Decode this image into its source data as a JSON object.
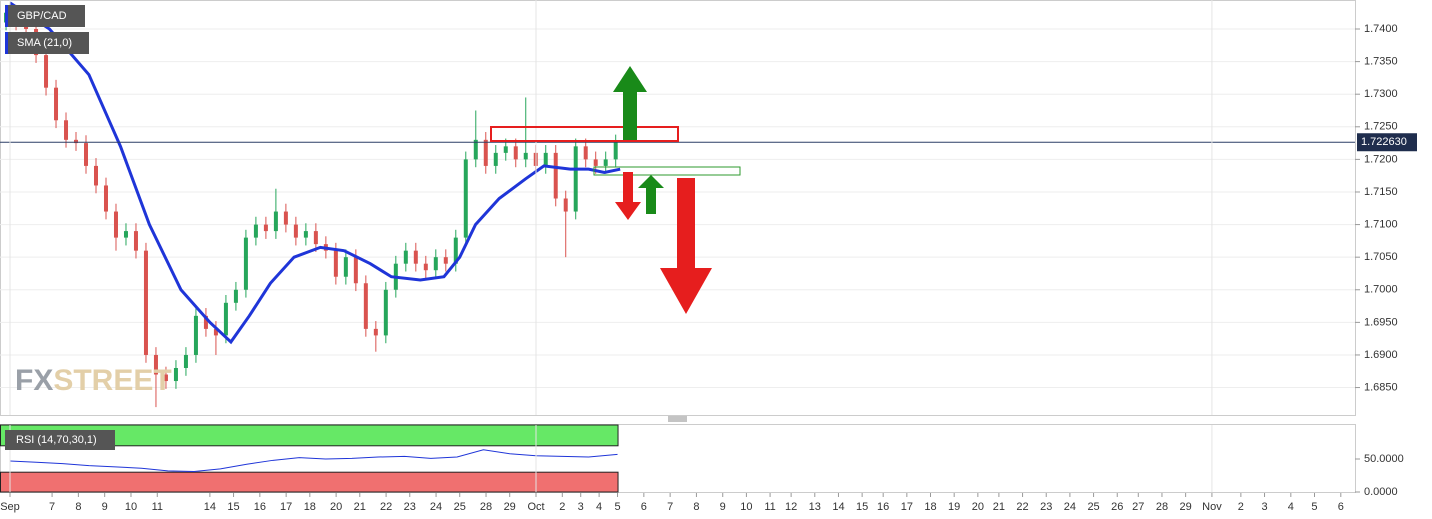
{
  "chart_data": [
    {
      "type": "candlestick",
      "title": "GBP/CAD",
      "xlim": [
        -0.38,
        51.14
      ],
      "ylim": [
        1.68079,
        1.74445
      ],
      "yticks": [
        {
          "value": 1.685,
          "label": "1.6850"
        },
        {
          "value": 1.69,
          "label": "1.6900"
        },
        {
          "value": 1.695,
          "label": "1.6950"
        },
        {
          "value": 1.7,
          "label": "1.7000"
        },
        {
          "value": 1.705,
          "label": "1.7050"
        },
        {
          "value": 1.71,
          "label": "1.7100"
        },
        {
          "value": 1.715,
          "label": "1.7150"
        },
        {
          "value": 1.72,
          "label": "1.7200"
        },
        {
          "value": 1.725,
          "label": "1.7250"
        },
        {
          "value": 1.73,
          "label": "1.7300"
        },
        {
          "value": 1.735,
          "label": "1.7350"
        },
        {
          "value": 1.74,
          "label": "1.7400"
        }
      ],
      "grid": true,
      "up_color": "#26a65b",
      "down_color": "#d9534f",
      "current": {
        "value": 1.72263,
        "label": "1.722630"
      },
      "x": [
        -0.15,
        0.23,
        0.61,
        0.99,
        1.37,
        1.75,
        2.13,
        2.51,
        2.89,
        3.27,
        3.65,
        4.03,
        4.41,
        4.79,
        5.17,
        5.55,
        5.93,
        6.31,
        6.69,
        7.07,
        7.45,
        7.83,
        8.21,
        8.59,
        8.97,
        9.35,
        9.73,
        10.11,
        10.49,
        10.87,
        11.25,
        11.63,
        12.01,
        12.39,
        12.77,
        13.15,
        13.53,
        13.91,
        14.29,
        14.67,
        15.05,
        15.43,
        15.81,
        16.19,
        16.57,
        16.95,
        17.33,
        17.71,
        18.09,
        18.47,
        18.85,
        19.23,
        19.61,
        19.99,
        20.37,
        20.75,
        21.13,
        21.51,
        21.89,
        22.27,
        22.65,
        23.03
      ],
      "open": [
        1.741,
        1.7425,
        1.741,
        1.74,
        1.736,
        1.731,
        1.726,
        1.723,
        1.7225,
        1.719,
        1.716,
        1.712,
        1.708,
        1.709,
        1.706,
        1.69,
        1.687,
        1.686,
        1.688,
        1.69,
        1.696,
        1.694,
        1.693,
        1.698,
        1.7,
        1.708,
        1.71,
        1.709,
        1.712,
        1.71,
        1.708,
        1.709,
        1.707,
        1.706,
        1.702,
        1.705,
        1.701,
        1.694,
        1.693,
        1.7,
        1.704,
        1.706,
        1.704,
        1.703,
        1.705,
        1.704,
        1.708,
        1.72,
        1.723,
        1.719,
        1.721,
        1.722,
        1.72,
        1.721,
        1.719,
        1.721,
        1.714,
        1.712,
        1.722,
        1.72,
        1.719,
        1.72
      ],
      "high": [
        1.7437,
        1.7437,
        1.7422,
        1.7412,
        1.7372,
        1.7322,
        1.7272,
        1.7242,
        1.7237,
        1.7202,
        1.7172,
        1.7132,
        1.7102,
        1.7102,
        1.7072,
        1.6912,
        1.6882,
        1.6892,
        1.6912,
        1.6972,
        1.6972,
        1.6952,
        1.6992,
        1.7012,
        1.7092,
        1.7112,
        1.7112,
        1.7155,
        1.7132,
        1.7112,
        1.7102,
        1.7102,
        1.7082,
        1.7072,
        1.7062,
        1.7062,
        1.7022,
        1.6952,
        1.7012,
        1.7052,
        1.7072,
        1.7072,
        1.7052,
        1.7062,
        1.7062,
        1.7092,
        1.7212,
        1.7275,
        1.7242,
        1.7222,
        1.7232,
        1.7232,
        1.7295,
        1.7222,
        1.7222,
        1.7222,
        1.7152,
        1.7232,
        1.7232,
        1.7212,
        1.7212,
        1.7238
      ],
      "low": [
        1.7398,
        1.7398,
        1.7388,
        1.7348,
        1.7298,
        1.7248,
        1.7218,
        1.7213,
        1.7178,
        1.7148,
        1.7108,
        1.706,
        1.7068,
        1.7048,
        1.6888,
        1.682,
        1.6848,
        1.6848,
        1.6868,
        1.6888,
        1.6928,
        1.69,
        1.6918,
        1.6968,
        1.6988,
        1.7068,
        1.7078,
        1.7078,
        1.7088,
        1.7068,
        1.7068,
        1.7058,
        1.7048,
        1.7008,
        1.7008,
        1.6998,
        1.6928,
        1.6905,
        1.6918,
        1.6988,
        1.7028,
        1.7028,
        1.7018,
        1.7018,
        1.7028,
        1.7028,
        1.7068,
        1.7188,
        1.7178,
        1.7178,
        1.7198,
        1.7188,
        1.7188,
        1.7178,
        1.7178,
        1.7128,
        1.705,
        1.7108,
        1.7188,
        1.7178,
        1.7178,
        1.7188
      ],
      "close": [
        1.7425,
        1.741,
        1.74,
        1.736,
        1.731,
        1.726,
        1.723,
        1.7225,
        1.719,
        1.716,
        1.712,
        1.708,
        1.709,
        1.706,
        1.69,
        1.687,
        1.686,
        1.688,
        1.69,
        1.696,
        1.694,
        1.693,
        1.698,
        1.7,
        1.708,
        1.71,
        1.709,
        1.712,
        1.71,
        1.708,
        1.709,
        1.707,
        1.706,
        1.702,
        1.705,
        1.701,
        1.694,
        1.693,
        1.7,
        1.704,
        1.706,
        1.704,
        1.703,
        1.705,
        1.704,
        1.708,
        1.72,
        1.723,
        1.719,
        1.721,
        1.722,
        1.72,
        1.721,
        1.719,
        1.721,
        1.714,
        1.712,
        1.722,
        1.72,
        1.719,
        1.72,
        1.7226
      ],
      "series": [
        {
          "name": "SMA (21,0)",
          "color": "#1f35d8",
          "x": [
            0,
            1.5,
            3,
            4.2,
            5.3,
            6.5,
            7.6,
            8.4,
            9.1,
            9.9,
            10.8,
            11.8,
            12.7,
            13.7,
            14.5,
            15.6,
            16.5,
            17.1,
            17.7,
            18.6,
            19.6,
            20.3,
            21.3,
            22.0,
            22.6,
            23.2
          ],
          "values": [
            1.744,
            1.74,
            1.733,
            1.722,
            1.71,
            1.7,
            1.695,
            1.692,
            1.696,
            1.701,
            1.705,
            1.7065,
            1.706,
            1.704,
            1.702,
            1.7015,
            1.702,
            1.705,
            1.71,
            1.714,
            1.717,
            1.719,
            1.7185,
            1.7185,
            1.718,
            1.7185
          ]
        }
      ]
    },
    {
      "type": "line",
      "title": "RSI (14,70,30,1)",
      "color": "#1f35d8",
      "overbought": 70,
      "oversold": 30,
      "overbought_color": "#66e866",
      "oversold_color": "#f07070",
      "xlim": [
        -0.38,
        51.14
      ],
      "ylim": [
        0,
        101.5
      ],
      "yticks": [
        {
          "value": 0,
          "label": "0.0000"
        },
        {
          "value": 50,
          "label": "50.0000"
        }
      ],
      "x": [
        0,
        1,
        2,
        3,
        4,
        5,
        6,
        7,
        8,
        9,
        10,
        11,
        12,
        13,
        14,
        15,
        16,
        17,
        18,
        19,
        20,
        21,
        22,
        23.1
      ],
      "values": [
        47,
        45,
        43,
        40,
        38,
        36,
        32,
        31,
        35,
        42,
        48,
        52,
        50,
        51,
        53,
        54,
        51,
        53,
        64,
        58,
        55,
        54,
        53,
        57
      ],
      "xticks": [
        {
          "value": 0,
          "label": "Sep"
        },
        {
          "value": 1.6,
          "label": "7"
        },
        {
          "value": 2.6,
          "label": "8"
        },
        {
          "value": 3.6,
          "label": "9"
        },
        {
          "value": 4.6,
          "label": "10"
        },
        {
          "value": 5.6,
          "label": "11"
        },
        {
          "value": 7.6,
          "label": "14"
        },
        {
          "value": 8.5,
          "label": "15"
        },
        {
          "value": 9.5,
          "label": "16"
        },
        {
          "value": 10.5,
          "label": "17"
        },
        {
          "value": 11.4,
          "label": "18"
        },
        {
          "value": 12.4,
          "label": "20"
        },
        {
          "value": 13.3,
          "label": "21"
        },
        {
          "value": 14.3,
          "label": "22"
        },
        {
          "value": 15.2,
          "label": "23"
        },
        {
          "value": 16.2,
          "label": "24"
        },
        {
          "value": 17.1,
          "label": "25"
        },
        {
          "value": 18.1,
          "label": "28"
        },
        {
          "value": 19.0,
          "label": "29"
        },
        {
          "value": 20.0,
          "label": "Oct"
        },
        {
          "value": 21.0,
          "label": "2"
        },
        {
          "value": 21.7,
          "label": "3"
        },
        {
          "value": 22.4,
          "label": "4"
        },
        {
          "value": 23.1,
          "label": "5"
        },
        {
          "value": 24.1,
          "label": "6"
        },
        {
          "value": 25.1,
          "label": "7"
        },
        {
          "value": 26.1,
          "label": "8"
        },
        {
          "value": 27.1,
          "label": "9"
        },
        {
          "value": 28.0,
          "label": "10"
        },
        {
          "value": 28.9,
          "label": "11"
        },
        {
          "value": 29.7,
          "label": "12"
        },
        {
          "value": 30.6,
          "label": "13"
        },
        {
          "value": 31.5,
          "label": "14"
        },
        {
          "value": 32.4,
          "label": "15"
        },
        {
          "value": 33.2,
          "label": "16"
        },
        {
          "value": 34.1,
          "label": "17"
        },
        {
          "value": 35.0,
          "label": "18"
        },
        {
          "value": 35.9,
          "label": "19"
        },
        {
          "value": 36.8,
          "label": "20"
        },
        {
          "value": 37.6,
          "label": "21"
        },
        {
          "value": 38.5,
          "label": "22"
        },
        {
          "value": 39.4,
          "label": "23"
        },
        {
          "value": 40.3,
          "label": "24"
        },
        {
          "value": 41.2,
          "label": "25"
        },
        {
          "value": 42.1,
          "label": "26"
        },
        {
          "value": 42.9,
          "label": "27"
        },
        {
          "value": 43.8,
          "label": "28"
        },
        {
          "value": 44.7,
          "label": "29"
        },
        {
          "value": 45.7,
          "label": "Nov"
        },
        {
          "value": 46.8,
          "label": "2"
        },
        {
          "value": 47.7,
          "label": "3"
        },
        {
          "value": 48.7,
          "label": "4"
        },
        {
          "value": 49.6,
          "label": "5"
        },
        {
          "value": 50.6,
          "label": "6"
        }
      ]
    }
  ],
  "watermark": "FXSTREET"
}
